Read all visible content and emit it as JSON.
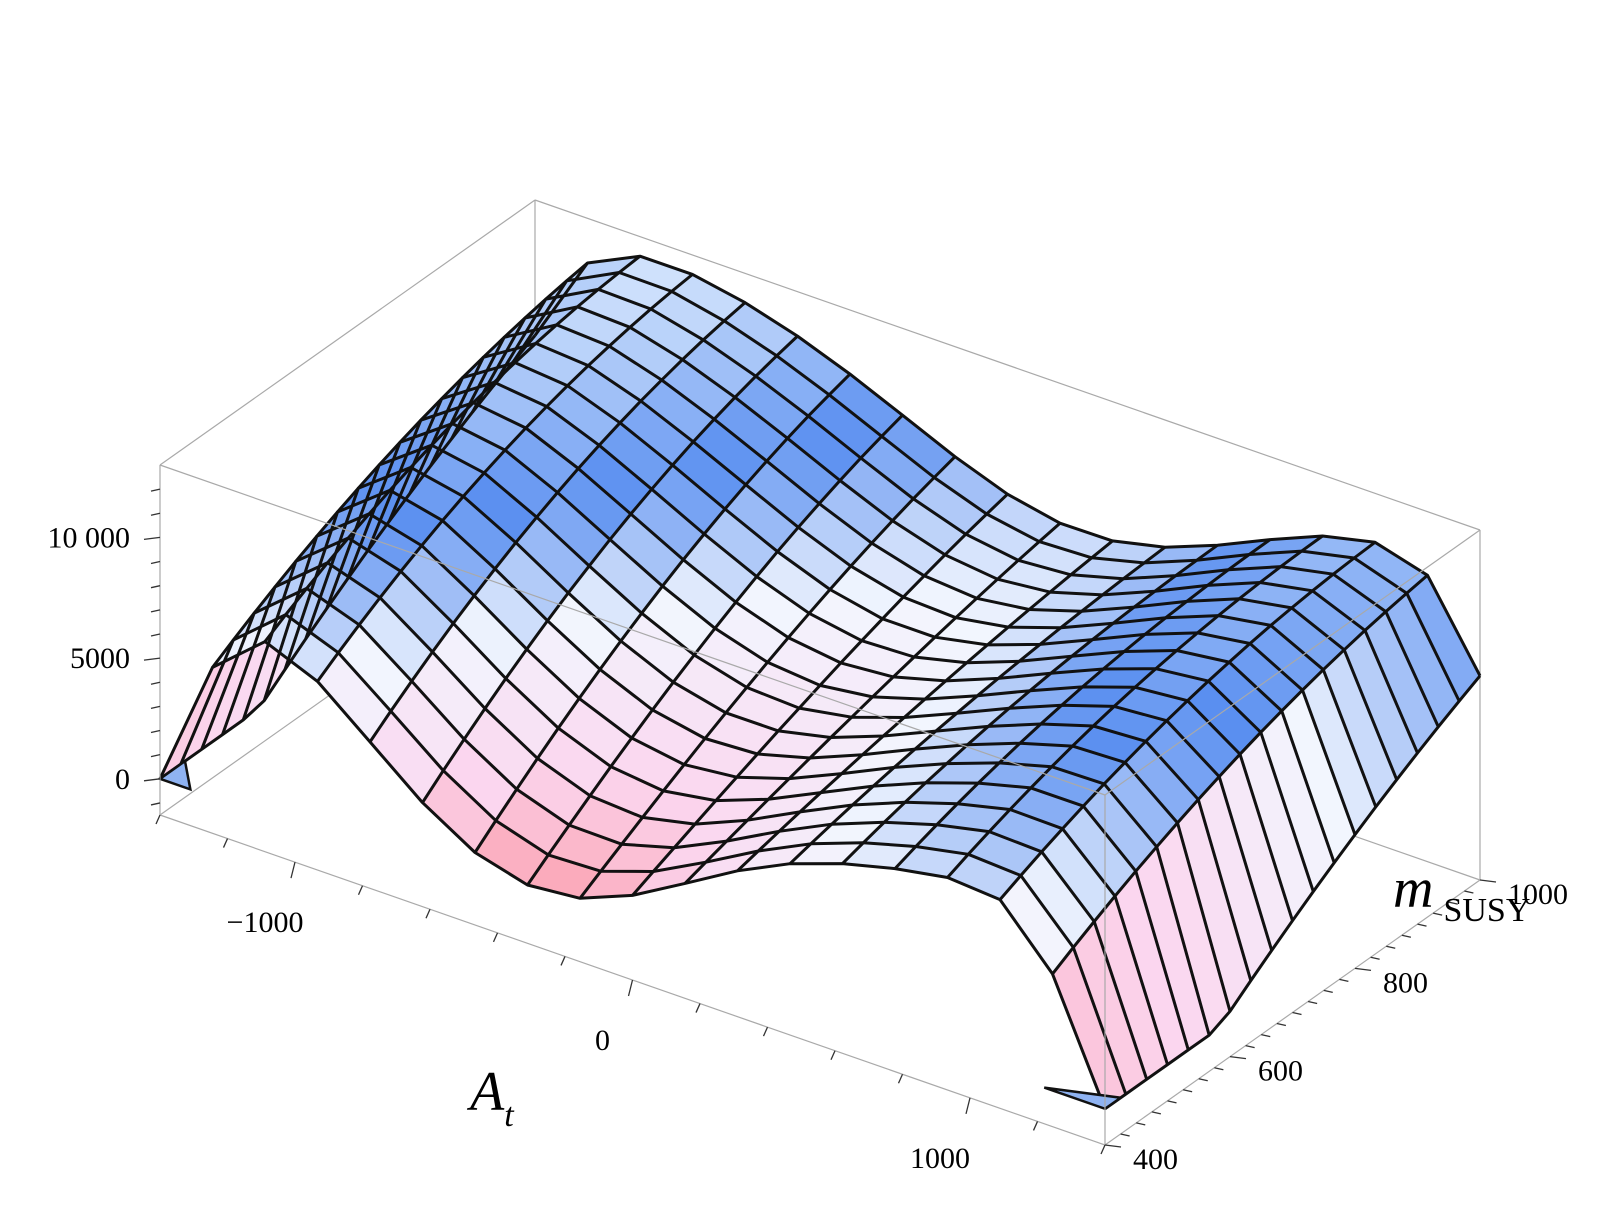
{
  "chart_data": {
    "type": "surface3d",
    "x_axis": {
      "label_main": "A",
      "label_sub": "t",
      "range": [
        -1400,
        1400
      ],
      "ticks": [
        -1000,
        0,
        1000
      ],
      "tick_labels": [
        "−1000",
        "0",
        "1000"
      ]
    },
    "y_axis": {
      "label_main": "m",
      "label_sub": "SUSY",
      "range": [
        400,
        1000
      ],
      "ticks": [
        400,
        600,
        800,
        1000
      ],
      "tick_labels": [
        "400",
        "600",
        "800",
        "1000"
      ]
    },
    "z_axis": {
      "range": [
        -1500,
        13000
      ],
      "ticks": [
        0,
        5000,
        10000
      ],
      "tick_labels": [
        "0",
        "5000",
        "10 000"
      ]
    },
    "mesh": {
      "x_lines": 18,
      "y_lines": 18
    },
    "colormap": {
      "low": "#fb8d99",
      "mid_low": "#fbd6ef",
      "mid": "#f2f6fe",
      "mid_high": "#5a8ff0",
      "high": "#eef7ff",
      "deep": "#3f48d8"
    },
    "colors": {
      "box": "#a9a9a9",
      "mesh": "#111111",
      "cap": "#8fb3f2"
    }
  }
}
